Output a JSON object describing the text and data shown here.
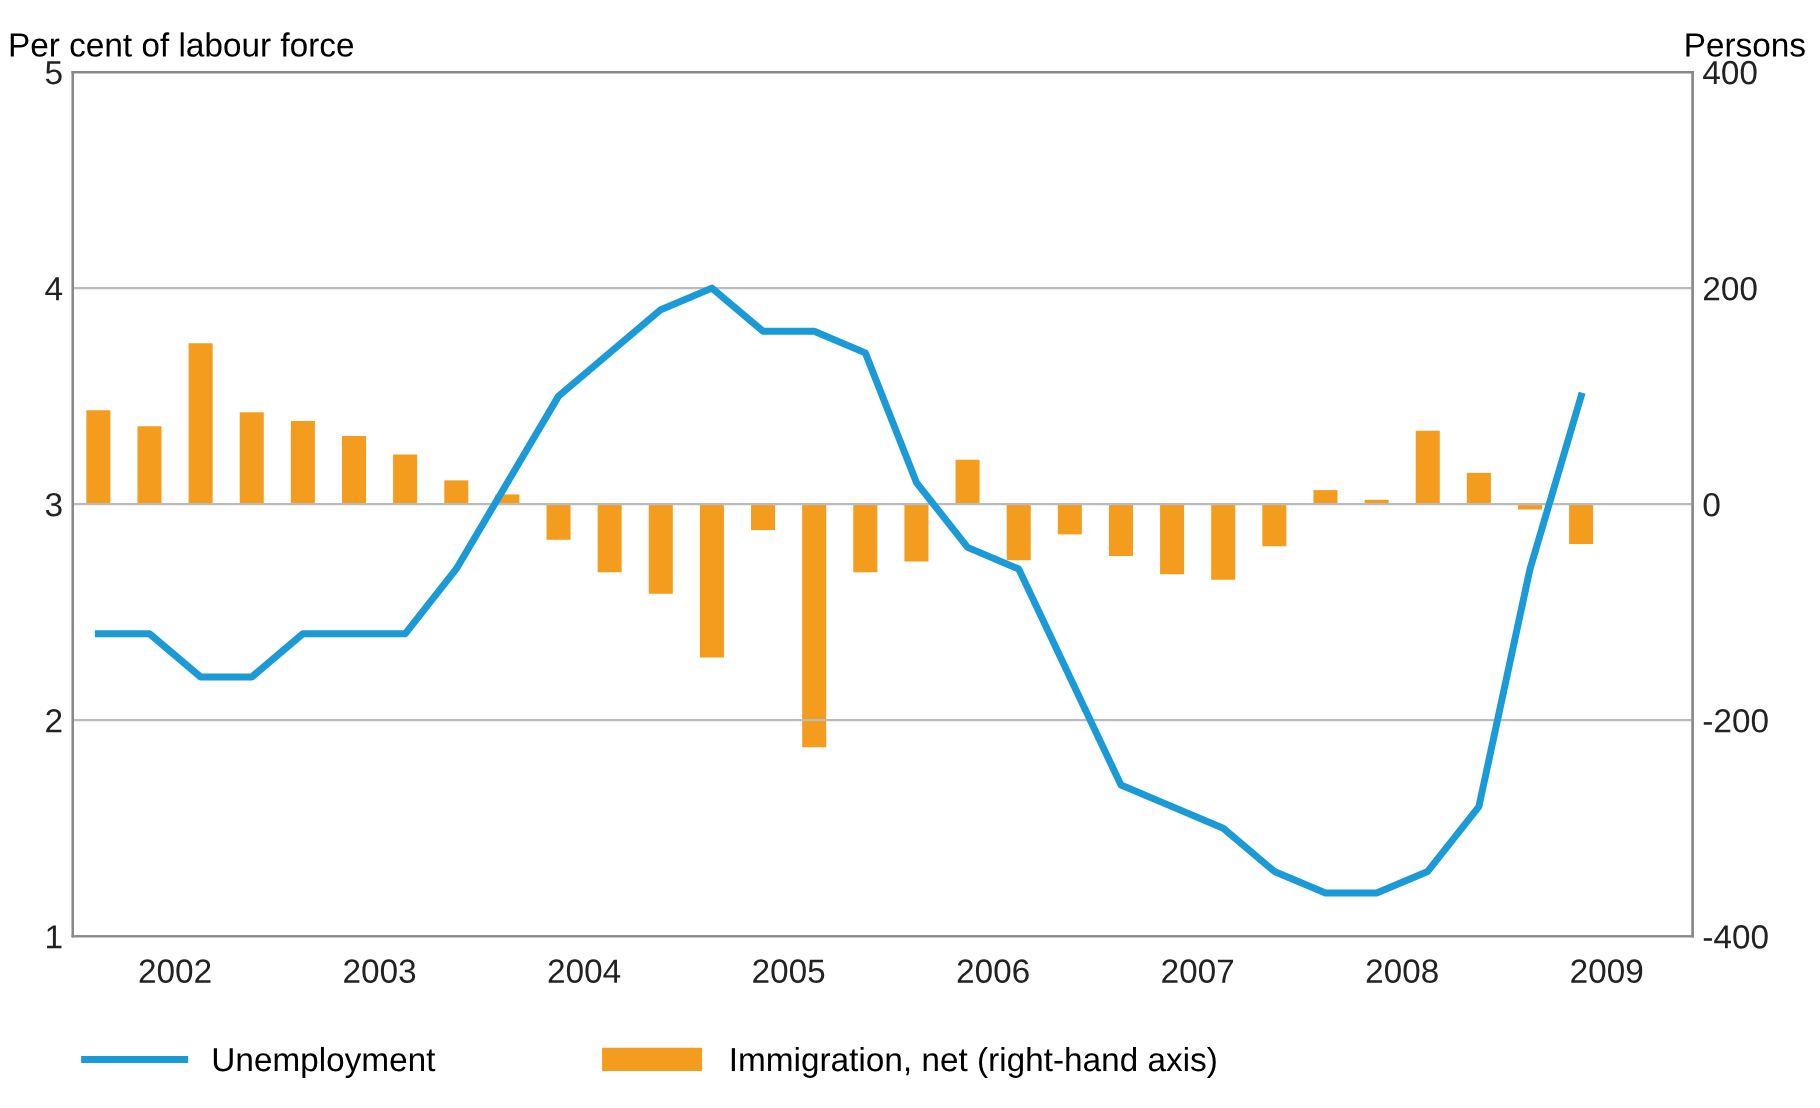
{
  "chart_data": {
    "type": "line",
    "ylabel": "Per cent of labour force",
    "y2label": "Persons",
    "x": [
      2002.125,
      2002.375,
      2002.625,
      2002.875,
      2003.125,
      2003.375,
      2003.625,
      2003.875,
      2004.125,
      2004.375,
      2004.625,
      2004.875,
      2005.125,
      2005.375,
      2005.625,
      2005.875,
      2006.125,
      2006.375,
      2006.625,
      2006.875,
      2007.125,
      2007.375,
      2007.625,
      2007.875,
      2008.125,
      2008.375,
      2008.625,
      2008.875,
      2009.125,
      2009.375
    ],
    "series": [
      {
        "name": "Unemployment",
        "color": "#1a9ad6",
        "values": [
          2.4,
          2.4,
          2.2,
          2.2,
          2.4,
          2.4,
          2.4,
          2.7,
          3.1,
          3.5,
          3.7,
          3.9,
          4.0,
          3.8,
          3.8,
          3.7,
          3.1,
          2.8,
          2.7,
          2.2,
          1.7,
          1.6,
          1.5,
          1.3,
          1.2,
          1.2,
          1.3,
          1.6,
          2.7,
          3.5
        ]
      },
      {
        "name": "Immigration, net (right-hand axis)",
        "type": "bar",
        "axis": "y2",
        "color": "#f39c1e",
        "values": [
          87,
          72,
          149,
          85,
          77,
          63,
          46,
          22,
          9,
          -33,
          -63,
          -83,
          -142,
          -24,
          -225,
          -63,
          -53,
          41,
          -52,
          -28,
          -48,
          -65,
          -70,
          -39,
          13,
          4,
          68,
          29,
          -5,
          -37
        ]
      }
    ],
    "xlim": [
      2002.0,
      2009.92
    ],
    "xticks": [
      {
        "value": 2002.5,
        "label": "2002"
      },
      {
        "value": 2003.5,
        "label": "2003"
      },
      {
        "value": 2004.5,
        "label": "2004"
      },
      {
        "value": 2005.5,
        "label": "2005"
      },
      {
        "value": 2006.5,
        "label": "2006"
      },
      {
        "value": 2007.5,
        "label": "2007"
      },
      {
        "value": 2008.5,
        "label": "2008"
      },
      {
        "value": 2009.5,
        "label": "2009"
      }
    ],
    "ylim": [
      1,
      5
    ],
    "yticks": [
      1,
      2,
      3,
      4,
      5
    ],
    "y2lim": [
      -400,
      400
    ],
    "y2ticks": [
      -400,
      -200,
      0,
      200,
      400
    ],
    "grid": "y",
    "legend": "bottom"
  }
}
